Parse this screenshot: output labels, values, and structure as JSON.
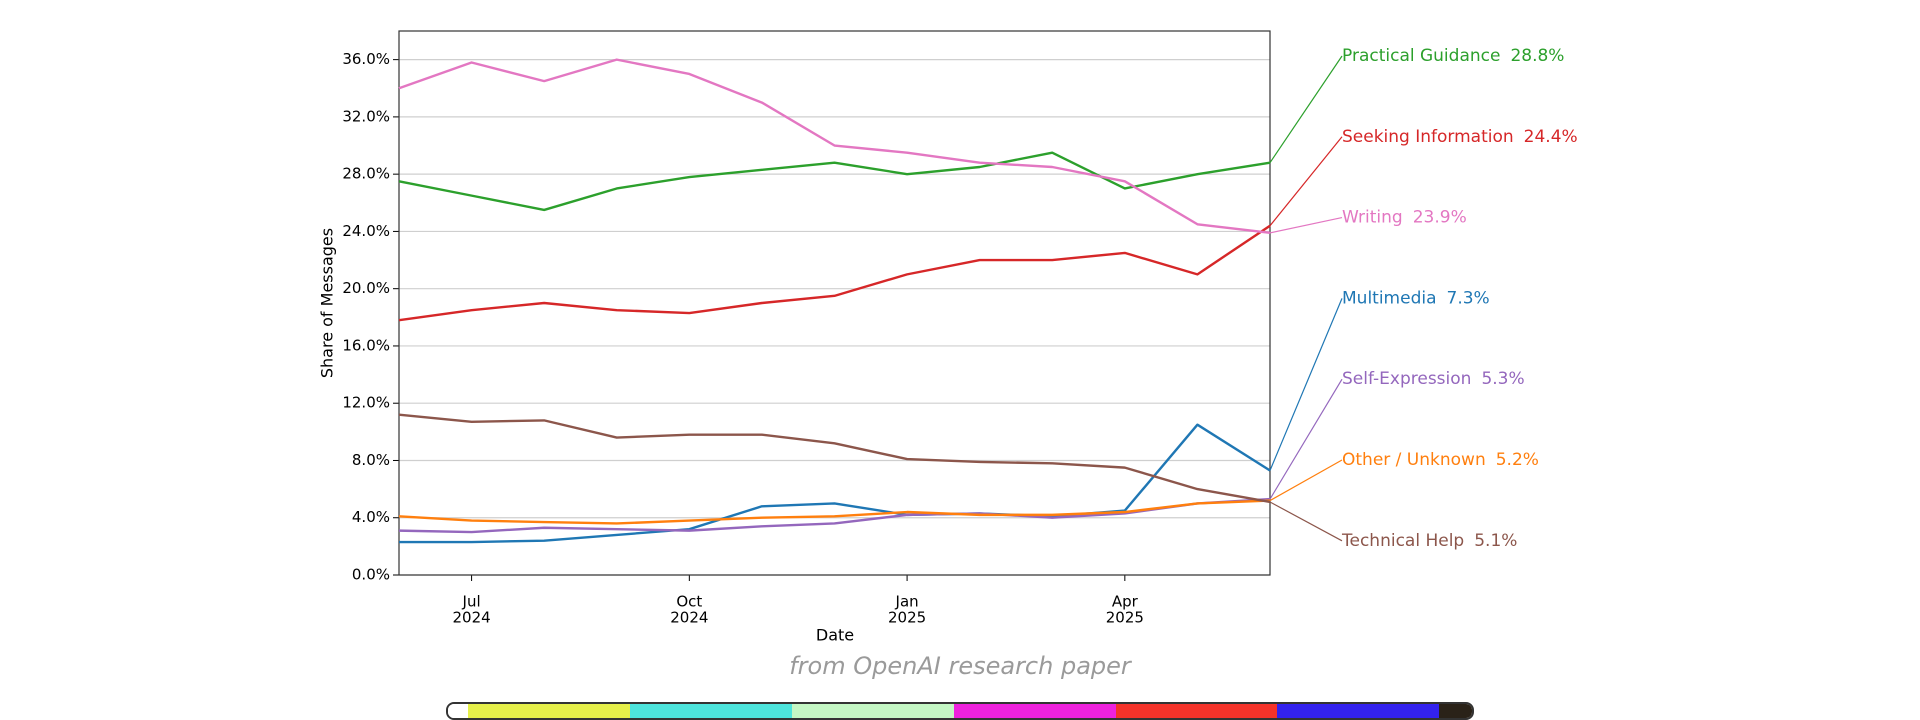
{
  "chart_data": {
    "type": "line",
    "x_label": "Date",
    "y_label": "Share of Messages",
    "x": [
      "2024-06",
      "2024-07",
      "2024-08",
      "2024-09",
      "2024-10",
      "2024-11",
      "2024-12",
      "2025-01",
      "2025-02",
      "2025-03",
      "2025-04",
      "2025-05",
      "2025-06"
    ],
    "xlim": [
      "2024-06",
      "2025-06"
    ],
    "xticks": [
      {
        "value": "2024-07",
        "label": [
          "Jul",
          "2024"
        ]
      },
      {
        "value": "2024-10",
        "label": [
          "Oct",
          "2024"
        ]
      },
      {
        "value": "2025-01",
        "label": [
          "Jan",
          "2025"
        ]
      },
      {
        "value": "2025-04",
        "label": [
          "Apr",
          "2025"
        ]
      }
    ],
    "ylim": [
      0,
      38
    ],
    "yticks": [
      {
        "value": 0,
        "label": "0.0%"
      },
      {
        "value": 4,
        "label": "4.0%"
      },
      {
        "value": 8,
        "label": "8.0%"
      },
      {
        "value": 12,
        "label": "12.0%"
      },
      {
        "value": 16,
        "label": "16.0%"
      },
      {
        "value": 20,
        "label": "20.0%"
      },
      {
        "value": 24,
        "label": "24.0%"
      },
      {
        "value": 28,
        "label": "28.0%"
      },
      {
        "value": 32,
        "label": "32.0%"
      },
      {
        "value": 36,
        "label": "36.0%"
      }
    ],
    "grid": true,
    "series": [
      {
        "name": "Practical Guidance",
        "color": "#2ca02c",
        "values": [
          27.5,
          26.5,
          25.5,
          27,
          27.8,
          28.3,
          28.8,
          28,
          28.5,
          29.5,
          27,
          28,
          28.8
        ],
        "value_labels": [
          null,
          null,
          null,
          null,
          null,
          null,
          null,
          null,
          null,
          null,
          null,
          null,
          "28.8%"
        ]
      },
      {
        "name": "Seeking Information",
        "color": "#d62728",
        "values": [
          17.8,
          18.5,
          19,
          18.5,
          18.3,
          19,
          19.5,
          21,
          22,
          22,
          22.5,
          21,
          24.4
        ],
        "value_labels": [
          null,
          null,
          null,
          null,
          null,
          null,
          null,
          null,
          null,
          null,
          null,
          null,
          "24.4%"
        ]
      },
      {
        "name": "Writing",
        "color": "#e377c2",
        "values": [
          34,
          35.8,
          34.5,
          36,
          35,
          33,
          30,
          29.5,
          28.8,
          28.5,
          27.5,
          24.5,
          23.9
        ],
        "value_labels": [
          null,
          null,
          null,
          null,
          null,
          null,
          null,
          null,
          null,
          null,
          null,
          null,
          "23.9%"
        ]
      },
      {
        "name": "Multimedia",
        "color": "#1f77b4",
        "values": [
          2.3,
          2.3,
          2.4,
          2.8,
          3.2,
          4.8,
          5,
          4.2,
          4.3,
          4.1,
          4.5,
          10.5,
          7.3
        ],
        "value_labels": [
          null,
          null,
          null,
          null,
          null,
          null,
          null,
          null,
          null,
          null,
          null,
          null,
          "7.3%"
        ]
      },
      {
        "name": "Self-Expression",
        "color": "#9467bd",
        "values": [
          3.1,
          3,
          3.3,
          3.2,
          3.1,
          3.4,
          3.6,
          4.2,
          4.3,
          4,
          4.3,
          5,
          5.3
        ],
        "value_labels": [
          null,
          null,
          null,
          null,
          null,
          null,
          null,
          null,
          null,
          null,
          null,
          null,
          "5.3%"
        ]
      },
      {
        "name": "Other / Unknown",
        "color": "#ff7f0e",
        "values": [
          4.1,
          3.8,
          3.7,
          3.6,
          3.8,
          4,
          4.1,
          4.4,
          4.2,
          4.2,
          4.4,
          5,
          5.2
        ],
        "value_labels": [
          null,
          null,
          null,
          null,
          null,
          null,
          null,
          null,
          null,
          null,
          null,
          null,
          "5.2%"
        ]
      },
      {
        "name": "Technical Help",
        "color": "#8c564b",
        "values": [
          11.2,
          10.7,
          10.8,
          9.6,
          9.8,
          9.8,
          9.2,
          8.1,
          7.9,
          7.8,
          7.5,
          6,
          5.1
        ],
        "value_labels": [
          null,
          null,
          null,
          null,
          null,
          null,
          null,
          null,
          null,
          null,
          null,
          null,
          "5.1%"
        ]
      }
    ]
  },
  "caption": "from OpenAI research paper"
}
